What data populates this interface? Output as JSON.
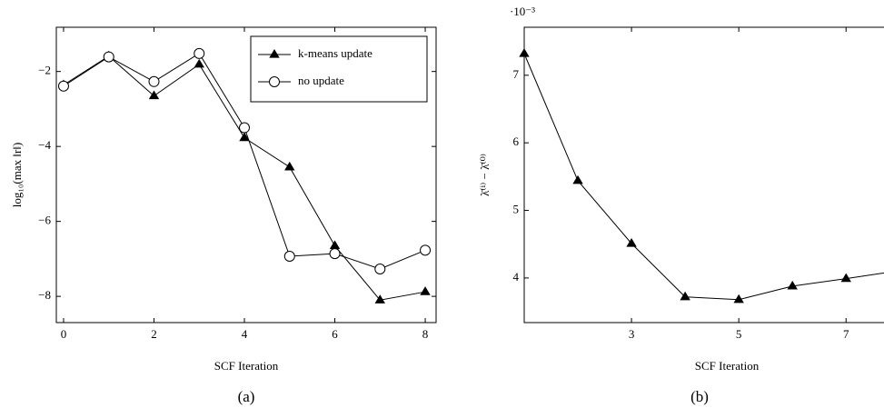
{
  "chart_data": [
    {
      "type": "line",
      "caption": "(a)",
      "xlabel": "SCF Iteration",
      "ylabel": "log₁₀(max ‖r‖)",
      "x": [
        0,
        1,
        2,
        3,
        4,
        5,
        6,
        7,
        8
      ],
      "series": [
        {
          "name": "k-means update",
          "color": "#000000",
          "marker": "triangle",
          "values": [
            -2.36,
            -1.59,
            -2.65,
            -1.81,
            -3.77,
            -4.55,
            -6.65,
            -8.1,
            -7.88
          ]
        },
        {
          "name": "no update",
          "color": "#000000",
          "marker": "circle",
          "values": [
            -2.39,
            -1.61,
            -2.27,
            -1.52,
            -3.5,
            -6.93,
            -6.86,
            -7.27,
            -6.77
          ]
        }
      ],
      "xlim": [
        -0.16,
        8.24
      ],
      "ylim": [
        -8.7,
        -0.82
      ],
      "xticks": [
        0,
        2,
        4,
        6,
        8
      ],
      "yticks": [
        {
          "value": -8,
          "label": "−8"
        },
        {
          "value": -6,
          "label": "−6"
        },
        {
          "value": -4,
          "label": "−4"
        },
        {
          "value": -2,
          "label": "−2"
        }
      ],
      "legend": "upper right"
    },
    {
      "type": "line",
      "caption": "(b)",
      "xlabel": "SCF Iteration",
      "ylabel": "λ̄⁽ⁱ⁾ − λ̄⁽⁰⁾",
      "multiplier": "·10⁻³",
      "x": [
        1,
        2,
        3,
        4,
        5,
        6,
        7,
        8
      ],
      "color": "#000000",
      "marker": "triangle",
      "values": [
        7.32,
        5.44,
        4.51,
        3.72,
        3.68,
        3.88,
        3.99,
        4.11
      ],
      "xlim": [
        1,
        8.3
      ],
      "ylim": [
        3.34,
        7.71
      ],
      "xticks": [
        3,
        5,
        7
      ],
      "yticks": [
        4,
        5,
        6,
        7
      ]
    }
  ]
}
